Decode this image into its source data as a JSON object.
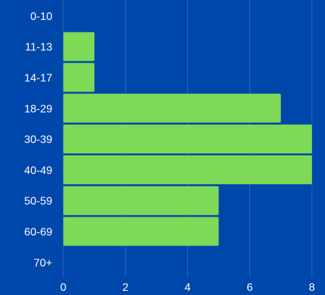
{
  "chart_data": {
    "type": "bar",
    "orientation": "horizontal",
    "categories": [
      "0-10",
      "11-13",
      "14-17",
      "18-29",
      "30-39",
      "40-49",
      "50-59",
      "60-69",
      "70+"
    ],
    "values": [
      0,
      1,
      1,
      7,
      8,
      8,
      5,
      5,
      0
    ],
    "xlim": [
      0,
      8
    ],
    "xticks": [
      "0",
      "2",
      "4",
      "6",
      "8"
    ],
    "title": "",
    "xlabel": "",
    "ylabel": "",
    "grid": "vertical",
    "colors": {
      "background": "#0047ab",
      "bar": "#7ed957",
      "text": "#ffffff"
    }
  }
}
